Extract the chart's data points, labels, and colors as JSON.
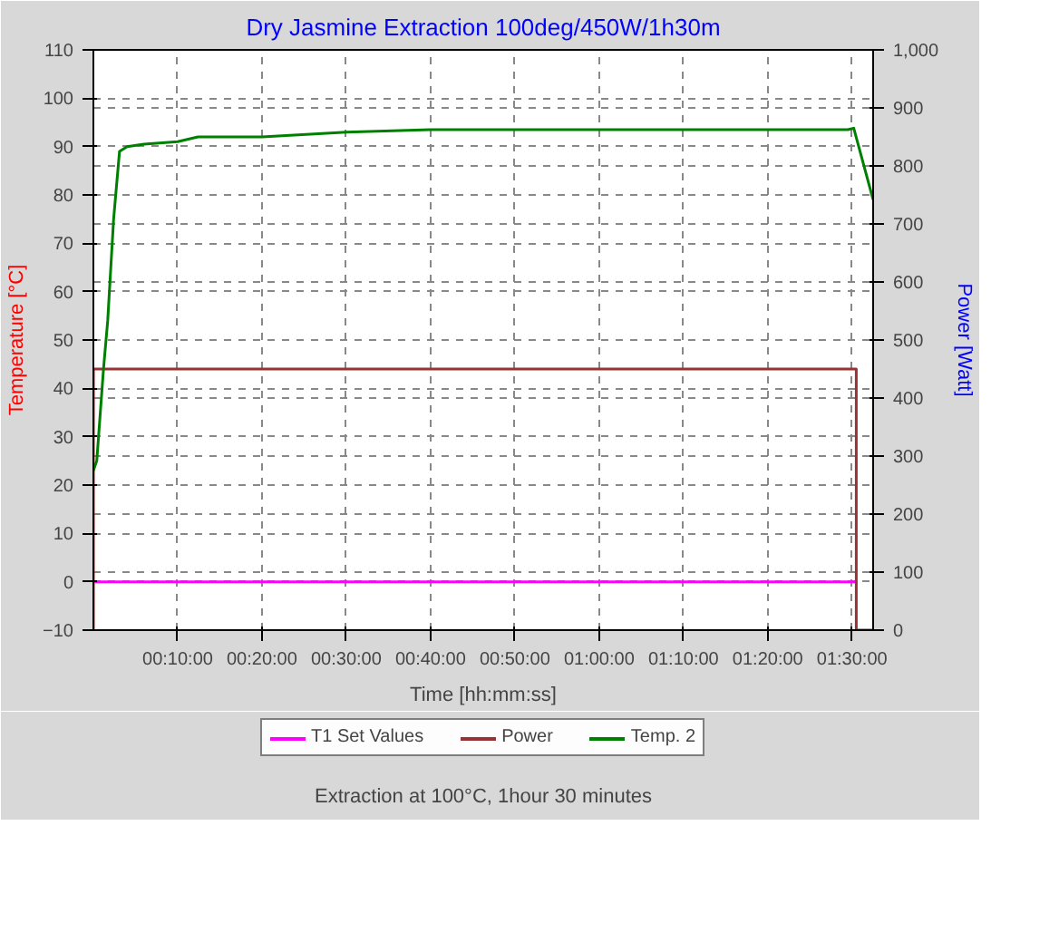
{
  "chart_data": {
    "type": "line",
    "title": "Dry Jasmine Extraction 100deg/450W/1h30m",
    "xlabel": "Time [hh:mm:ss]",
    "ylabel": "Temperature [°C]",
    "y2label": "Power [Watt]",
    "annotations": [
      "Extraction at 100°C, 1hour 30 minutes"
    ],
    "xlim": [
      0,
      92.5
    ],
    "xticks": [
      {
        "value": 10,
        "label": "00:10:00"
      },
      {
        "value": 20,
        "label": "00:20:00"
      },
      {
        "value": 30,
        "label": "00:30:00"
      },
      {
        "value": 40,
        "label": "00:40:00"
      },
      {
        "value": 50,
        "label": "00:50:00"
      },
      {
        "value": 60,
        "label": "01:00:00"
      },
      {
        "value": 70,
        "label": "01:10:00"
      },
      {
        "value": 80,
        "label": "01:20:00"
      },
      {
        "value": 90,
        "label": "01:30:00"
      }
    ],
    "ylim": [
      -10,
      110
    ],
    "yticks": [
      -10,
      0,
      10,
      20,
      30,
      40,
      50,
      60,
      70,
      80,
      90,
      100,
      110
    ],
    "y2lim": [
      0,
      1000
    ],
    "y2ticks": [
      0,
      100,
      200,
      300,
      400,
      500,
      600,
      700,
      800,
      900,
      {
        "value": 1000,
        "label": "1,000"
      }
    ],
    "grid": true,
    "legend": "bottom",
    "line_style": "solid",
    "series": [
      {
        "name": "T1 Set Values",
        "color": "#ff00ff",
        "x": [
          0,
          90.5
        ],
        "values": [
          0,
          0
        ]
      },
      {
        "name": "Power",
        "color": "#993333",
        "axis": "y2",
        "x": [
          0,
          0,
          90.5,
          90.5,
          92.5
        ],
        "values": [
          0,
          450,
          450,
          0,
          0
        ]
      },
      {
        "name": "Temp. 2",
        "color": "#008000",
        "x": [
          0,
          0.4,
          1.2,
          1.7,
          2.4,
          3.1,
          4,
          6,
          10,
          12.4,
          20,
          30,
          40,
          50,
          60,
          70,
          80,
          89.5,
          90.2,
          92.5
        ],
        "values": [
          23,
          25,
          44,
          54,
          75,
          89,
          90,
          90.5,
          91,
          92,
          92,
          93,
          93.5,
          93.5,
          93.5,
          93.5,
          93.5,
          93.5,
          93.8,
          79
        ]
      }
    ]
  }
}
